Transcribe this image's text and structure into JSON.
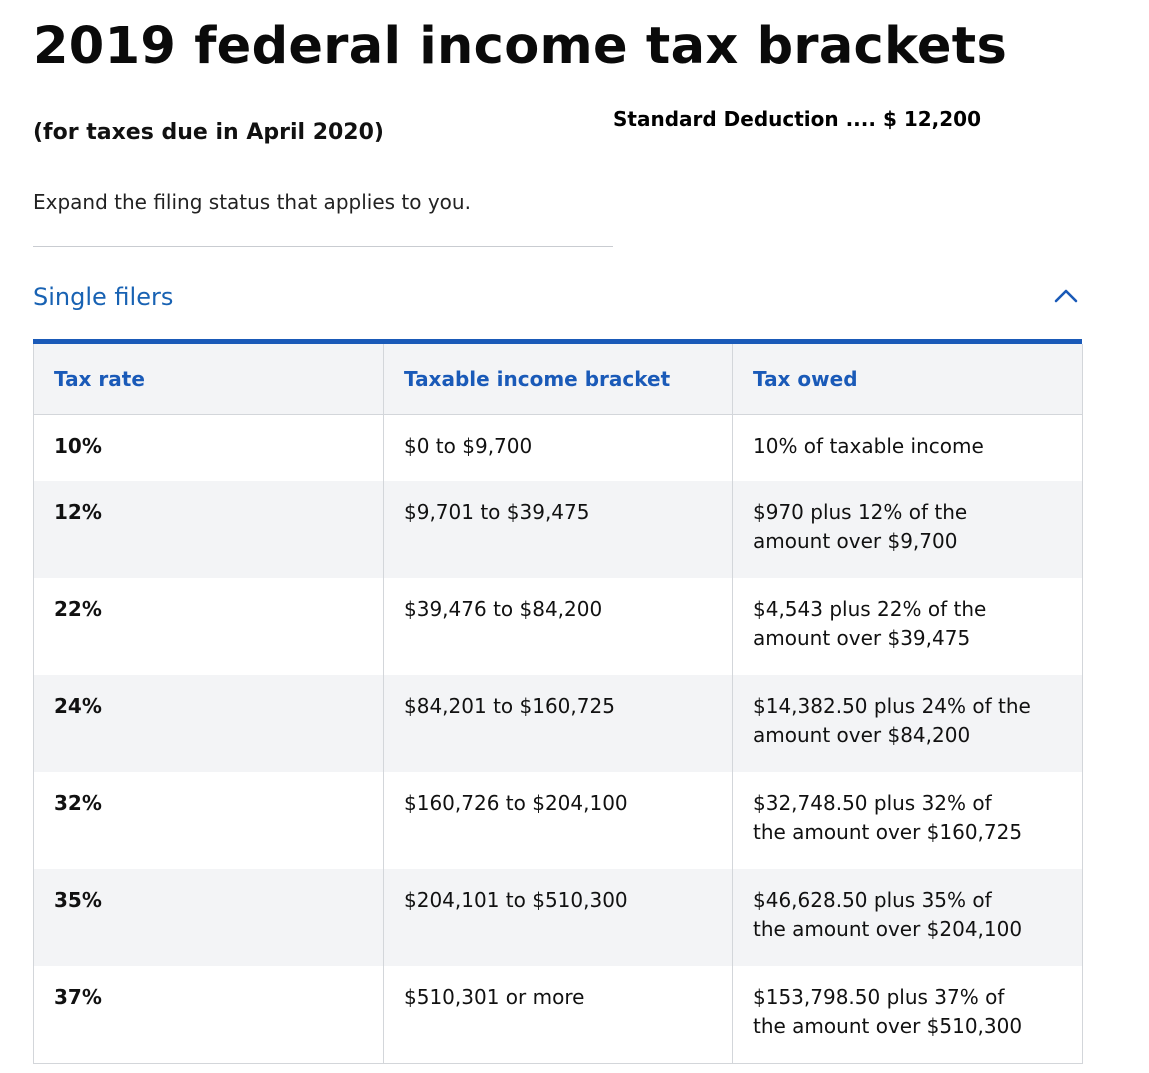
{
  "page": {
    "title": "2019 federal income tax brackets",
    "subtitle": "(for taxes due in April 2020)",
    "standard_deduction": "Standard Deduction .... $ 12,200",
    "instruction": "Expand the filing status that applies to you."
  },
  "accordion": {
    "title": "Single filers",
    "state": "expanded",
    "toggle_icon": "chevron-up-icon"
  },
  "colors": {
    "accent": "#1a5ab8",
    "link": "#1862b3",
    "row_alt": "#f3f4f6"
  },
  "table": {
    "headers": [
      "Tax rate",
      "Taxable income bracket",
      "Tax owed"
    ],
    "rows": [
      {
        "rate": "10%",
        "bracket": "$0 to $9,700",
        "owed_line1": "10% of taxable income",
        "owed_line2": ""
      },
      {
        "rate": "12%",
        "bracket": "$9,701 to $39,475",
        "owed_line1": "$970 plus 12% of the",
        "owed_line2": "amount over $9,700"
      },
      {
        "rate": "22%",
        "bracket": "$39,476 to $84,200",
        "owed_line1": "$4,543 plus 22% of the",
        "owed_line2": "amount over $39,475"
      },
      {
        "rate": "24%",
        "bracket": "$84,201 to $160,725",
        "owed_line1": "$14,382.50 plus 24% of the",
        "owed_line2": "amount over $84,200"
      },
      {
        "rate": "32%",
        "bracket": "$160,726 to $204,100",
        "owed_line1": "$32,748.50 plus 32% of",
        "owed_line2": "the amount over $160,725"
      },
      {
        "rate": "35%",
        "bracket": "$204,101 to $510,300",
        "owed_line1": "$46,628.50 plus 35% of",
        "owed_line2": "the amount over $204,100"
      },
      {
        "rate": "37%",
        "bracket": "$510,301 or more",
        "owed_line1": "$153,798.50 plus 37% of",
        "owed_line2": "the amount over $510,300"
      }
    ]
  }
}
